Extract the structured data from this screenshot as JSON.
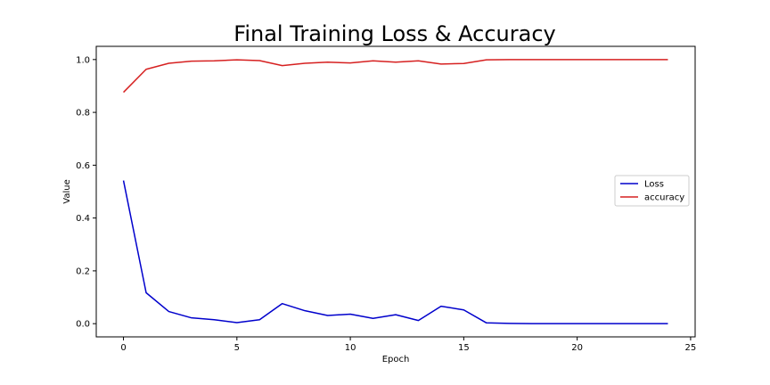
{
  "chart_data": {
    "type": "line",
    "title": "Final Training Loss & Accuracy",
    "xlabel": "Epoch",
    "ylabel": "Value",
    "xlim": [
      -1.2,
      25.2
    ],
    "ylim": [
      -0.05,
      1.05
    ],
    "xticks": [
      0,
      5,
      10,
      15,
      20,
      25
    ],
    "yticks": [
      0.0,
      0.2,
      0.4,
      0.6,
      0.8,
      1.0
    ],
    "ytick_labels": [
      "0.0",
      "0.2",
      "0.4",
      "0.6",
      "0.8",
      "1.0"
    ],
    "grid": false,
    "legend_position": "center-right",
    "x": [
      0,
      1,
      2,
      3,
      4,
      5,
      6,
      7,
      8,
      9,
      10,
      11,
      12,
      13,
      14,
      15,
      16,
      17,
      18,
      19,
      20,
      21,
      22,
      23,
      24
    ],
    "series": [
      {
        "name": "Loss",
        "color": "#0000cc",
        "values": [
          0.542,
          0.117,
          0.046,
          0.022,
          0.015,
          0.004,
          0.015,
          0.076,
          0.049,
          0.031,
          0.036,
          0.02,
          0.034,
          0.012,
          0.066,
          0.052,
          0.003,
          0.001,
          0.0,
          0.0,
          0.0,
          0.0,
          0.0,
          0.0,
          0.0
        ]
      },
      {
        "name": "accuracy",
        "color": "#d62020",
        "values": [
          0.876,
          0.963,
          0.986,
          0.994,
          0.995,
          0.999,
          0.996,
          0.977,
          0.986,
          0.99,
          0.987,
          0.995,
          0.99,
          0.995,
          0.983,
          0.985,
          0.999,
          1.0,
          1.0,
          1.0,
          1.0,
          1.0,
          1.0,
          1.0,
          1.0
        ]
      }
    ]
  }
}
